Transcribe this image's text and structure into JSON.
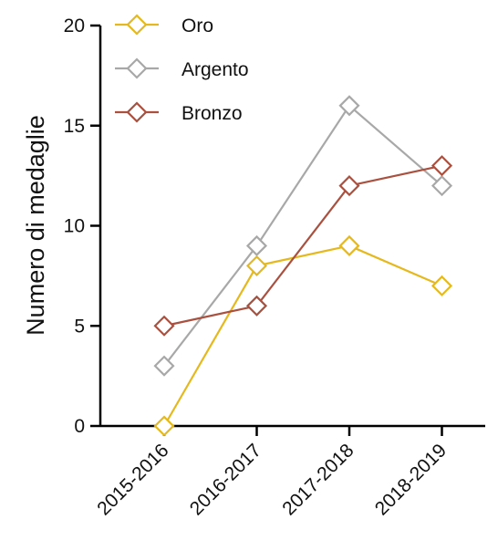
{
  "chart_data": {
    "type": "line",
    "title": "",
    "xlabel": "",
    "ylabel": "Numero di medaglie",
    "categories": [
      "2015-2016",
      "2016-2017",
      "2017-2018",
      "2018-2019"
    ],
    "ylim": [
      0,
      20
    ],
    "yticks": [
      0,
      5,
      10,
      15,
      20
    ],
    "grid": false,
    "legend_position": "top-left",
    "marker": "diamond-open",
    "series": [
      {
        "name": "Oro",
        "color": "#E5B91E",
        "values": [
          0,
          8,
          9,
          7
        ]
      },
      {
        "name": "Argento",
        "color": "#A8A8A8",
        "values": [
          3,
          9,
          16,
          12
        ]
      },
      {
        "name": "Bronzo",
        "color": "#A9503F",
        "values": [
          5,
          6,
          12,
          13
        ]
      }
    ]
  }
}
